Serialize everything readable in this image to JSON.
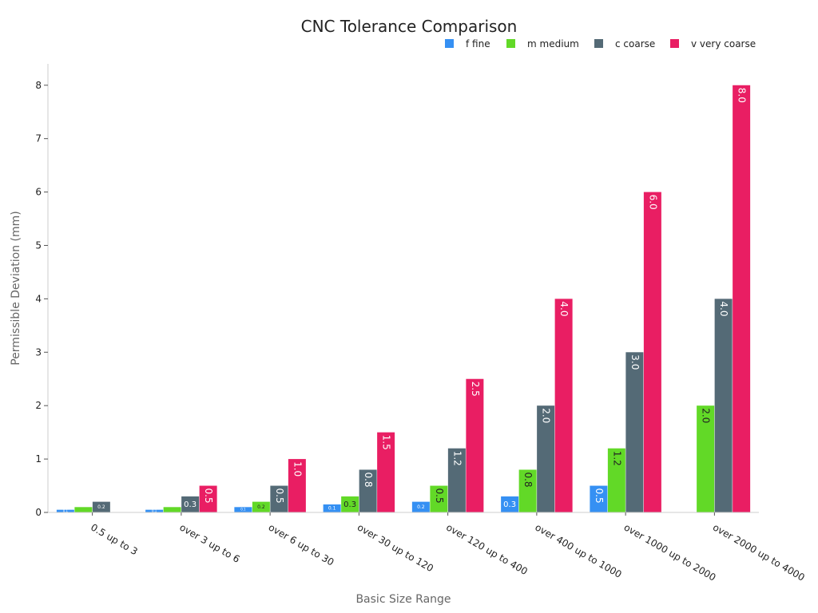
{
  "chart_data": {
    "type": "bar",
    "title": "CNC Tolerance Comparison",
    "xlabel": "Basic Size Range",
    "ylabel": "Permissible Deviation (mm)",
    "categories": [
      "0.5 up to 3",
      "over 3 up to 6",
      "over 6 up to 30",
      "over 30 up to 120",
      "over 120 up to 400",
      "over 400 up to 1000",
      "over 1000 up to 2000",
      "over 2000 up to 4000"
    ],
    "series": [
      {
        "name": "f fine",
        "color": "#3590F3",
        "values": [
          0.05,
          0.05,
          0.1,
          0.15,
          0.2,
          0.3,
          0.5,
          null
        ],
        "labels": [
          "0.1",
          "0.1",
          "0.1",
          "0.1",
          "0.2",
          "0.3",
          "0.5",
          ""
        ]
      },
      {
        "name": "m medium",
        "color": "#62D927",
        "values": [
          0.1,
          0.1,
          0.2,
          0.3,
          0.5,
          0.8,
          1.2,
          2.0
        ],
        "labels": [
          "",
          "",
          "0.2",
          "0.3",
          "0.5",
          "0.8",
          "1.2",
          "2.0"
        ]
      },
      {
        "name": "c coarse",
        "color": "#546A76",
        "values": [
          0.2,
          0.3,
          0.5,
          0.8,
          1.2,
          2.0,
          3.0,
          4.0
        ],
        "labels": [
          "0.2",
          "0.3",
          "0.5",
          "0.8",
          "1.2",
          "2.0",
          "3.0",
          "4.0"
        ]
      },
      {
        "name": "v very coarse",
        "color": "#E91E63",
        "values": [
          null,
          0.5,
          1.0,
          1.5,
          2.5,
          4.0,
          6.0,
          8.0
        ],
        "labels": [
          "",
          "0.5",
          "1.0",
          "1.5",
          "2.5",
          "4.0",
          "6.0",
          "8.0"
        ]
      }
    ],
    "ylim": [
      0,
      8.4
    ],
    "yticks": [
      0,
      1,
      2,
      3,
      4,
      5,
      6,
      7,
      8
    ],
    "grid": false,
    "legend": "top-right"
  }
}
